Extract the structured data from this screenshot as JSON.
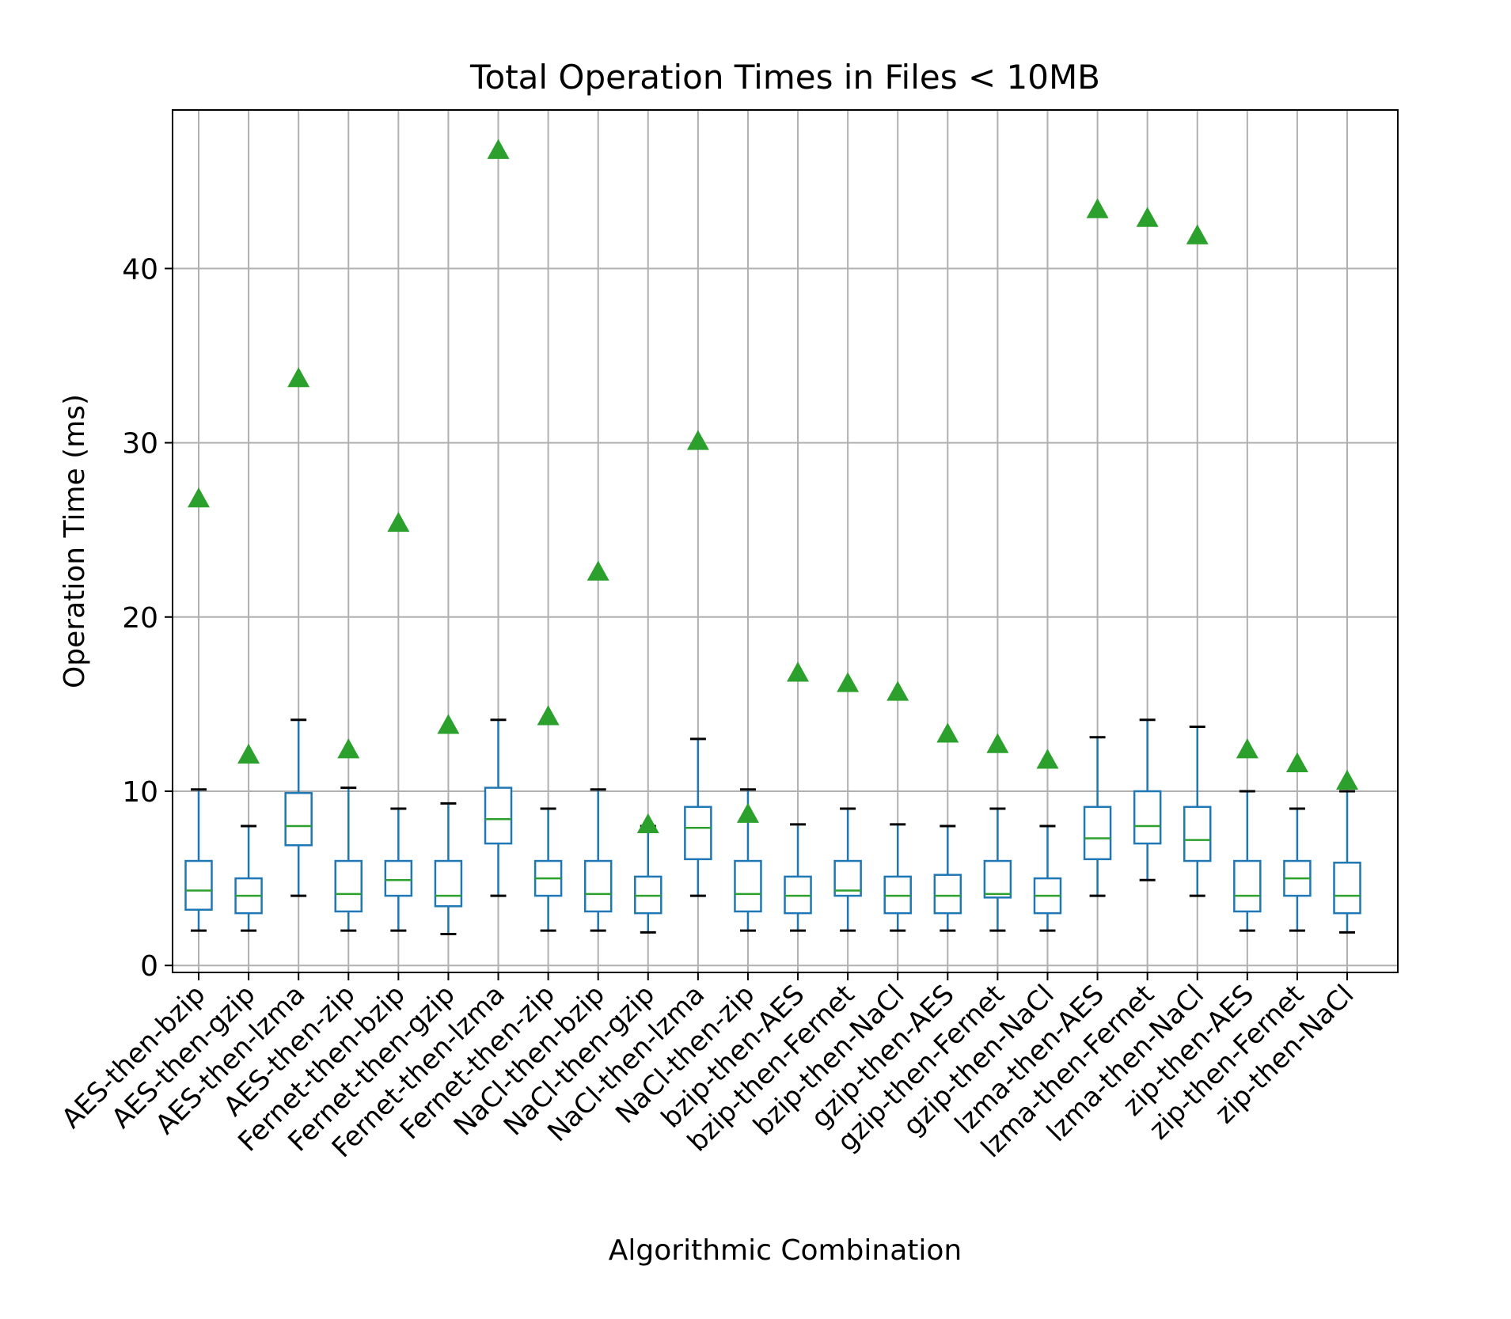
{
  "chart_data": {
    "type": "box",
    "title": "Total Operation Times in Files < 10MB",
    "xlabel": "Algorithmic Combination",
    "ylabel": "Operation Time (ms)",
    "ylim": [
      -0.4,
      49.1
    ],
    "yticks": [
      0,
      10,
      20,
      30,
      40
    ],
    "grid": true,
    "mean_marker": "triangle",
    "colors": {
      "box": "#1f77b4",
      "median": "#2ca02c",
      "mean": "#2ca02c",
      "grid": "#b0b0b0",
      "whisker_cap": "#000000"
    },
    "categories": [
      "AES-then-bzip",
      "AES-then-gzip",
      "AES-then-lzma",
      "AES-then-zip",
      "Fernet-then-bzip",
      "Fernet-then-gzip",
      "Fernet-then-lzma",
      "Fernet-then-zip",
      "NaCl-then-bzip",
      "NaCl-then-gzip",
      "NaCl-then-lzma",
      "NaCl-then-zip",
      "bzip-then-AES",
      "bzip-then-Fernet",
      "bzip-then-NaCl",
      "gzip-then-AES",
      "gzip-then-Fernet",
      "gzip-then-NaCl",
      "lzma-then-AES",
      "lzma-then-Fernet",
      "lzma-then-NaCl",
      "zip-then-AES",
      "zip-then-Fernet",
      "zip-then-NaCl"
    ],
    "boxes": [
      {
        "whislo": 2.0,
        "q1": 3.2,
        "med": 4.3,
        "q3": 6.0,
        "whishi": 10.1,
        "mean": 26.8
      },
      {
        "whislo": 2.0,
        "q1": 3.0,
        "med": 4.0,
        "q3": 5.0,
        "whishi": 8.0,
        "mean": 12.1
      },
      {
        "whislo": 4.0,
        "q1": 6.9,
        "med": 8.0,
        "q3": 9.9,
        "whishi": 14.1,
        "mean": 33.7
      },
      {
        "whislo": 2.0,
        "q1": 3.1,
        "med": 4.1,
        "q3": 6.0,
        "whishi": 10.2,
        "mean": 12.4
      },
      {
        "whislo": 2.0,
        "q1": 4.0,
        "med": 4.9,
        "q3": 6.0,
        "whishi": 9.0,
        "mean": 25.4
      },
      {
        "whislo": 1.8,
        "q1": 3.4,
        "med": 4.0,
        "q3": 6.0,
        "whishi": 9.3,
        "mean": 13.8
      },
      {
        "whislo": 4.0,
        "q1": 7.0,
        "med": 8.4,
        "q3": 10.2,
        "whishi": 14.1,
        "mean": 46.8
      },
      {
        "whislo": 2.0,
        "q1": 4.0,
        "med": 5.0,
        "q3": 6.0,
        "whishi": 9.0,
        "mean": 14.3
      },
      {
        "whislo": 2.0,
        "q1": 3.1,
        "med": 4.1,
        "q3": 6.0,
        "whishi": 10.1,
        "mean": 22.6
      },
      {
        "whislo": 1.9,
        "q1": 3.0,
        "med": 4.0,
        "q3": 5.1,
        "whishi": 8.0,
        "mean": 8.1
      },
      {
        "whislo": 4.0,
        "q1": 6.1,
        "med": 7.9,
        "q3": 9.1,
        "whishi": 13.0,
        "mean": 30.1
      },
      {
        "whislo": 2.0,
        "q1": 3.1,
        "med": 4.1,
        "q3": 6.0,
        "whishi": 10.1,
        "mean": 8.7
      },
      {
        "whislo": 2.0,
        "q1": 3.0,
        "med": 4.0,
        "q3": 5.1,
        "whishi": 8.1,
        "mean": 16.8
      },
      {
        "whislo": 2.0,
        "q1": 4.0,
        "med": 4.3,
        "q3": 6.0,
        "whishi": 9.0,
        "mean": 16.2
      },
      {
        "whislo": 2.0,
        "q1": 3.0,
        "med": 4.0,
        "q3": 5.1,
        "whishi": 8.1,
        "mean": 15.7
      },
      {
        "whislo": 2.0,
        "q1": 3.0,
        "med": 4.0,
        "q3": 5.2,
        "whishi": 8.0,
        "mean": 13.3
      },
      {
        "whislo": 2.0,
        "q1": 3.9,
        "med": 4.1,
        "q3": 6.0,
        "whishi": 9.0,
        "mean": 12.7
      },
      {
        "whislo": 2.0,
        "q1": 3.0,
        "med": 4.0,
        "q3": 5.0,
        "whishi": 8.0,
        "mean": 11.8
      },
      {
        "whislo": 4.0,
        "q1": 6.1,
        "med": 7.3,
        "q3": 9.1,
        "whishi": 13.1,
        "mean": 43.4
      },
      {
        "whislo": 4.9,
        "q1": 7.0,
        "med": 8.0,
        "q3": 10.0,
        "whishi": 14.1,
        "mean": 42.9
      },
      {
        "whislo": 4.0,
        "q1": 6.0,
        "med": 7.2,
        "q3": 9.1,
        "whishi": 13.7,
        "mean": 41.9
      },
      {
        "whislo": 2.0,
        "q1": 3.1,
        "med": 4.0,
        "q3": 6.0,
        "whishi": 10.0,
        "mean": 12.4
      },
      {
        "whislo": 2.0,
        "q1": 4.0,
        "med": 5.0,
        "q3": 6.0,
        "whishi": 9.0,
        "mean": 11.6
      },
      {
        "whislo": 1.9,
        "q1": 3.0,
        "med": 4.0,
        "q3": 5.9,
        "whishi": 10.0,
        "mean": 10.6
      }
    ]
  }
}
